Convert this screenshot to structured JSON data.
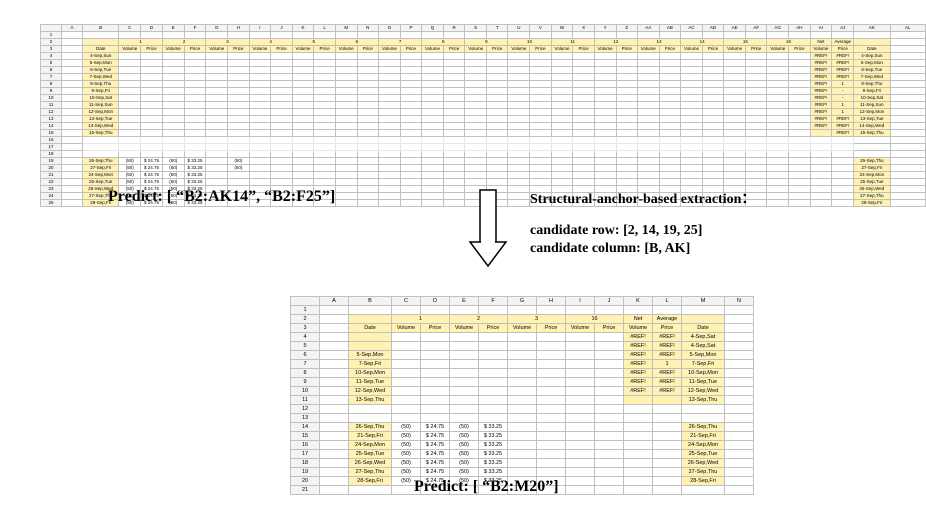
{
  "top": {
    "col_letters": [
      "A",
      "B",
      "C",
      "D",
      "E",
      "F",
      "G",
      "H",
      "I",
      "J",
      "K",
      "L",
      "M",
      "N",
      "O",
      "P",
      "Q",
      "R",
      "S",
      "T",
      "U",
      "V",
      "W",
      "X",
      "Y",
      "Z",
      "AA",
      "AB",
      "AC",
      "AD",
      "AE",
      "AF",
      "AG",
      "AH",
      "AI",
      "AJ",
      "AK",
      "AL"
    ],
    "header1_pairs": 16,
    "header2_hdr_b": "Date",
    "header2_pair": [
      "Volume",
      "Price"
    ],
    "header2_net": "Net\nVolume",
    "header2_avg": "Average\nPrice",
    "header2_date": "Date",
    "rows_block1": [
      {
        "date": "4-Sep,Sun",
        "net": "#REF!",
        "avg": "#REF!",
        "rdate": "4-Sep,Sun"
      },
      {
        "date": "5-Sep,Mon",
        "net": "#REF!",
        "avg": "#REF!",
        "rdate": "5-Sep,Mon"
      },
      {
        "date": "6-Sep,Tue",
        "net": "#REF!",
        "avg": "#REF!",
        "rdate": "6-Sep,Tue"
      },
      {
        "date": "7-Sep,Wed",
        "net": "#REF!",
        "avg": "#REF!",
        "rdate": "7-Sep,Wed"
      },
      {
        "date": "8-Sep,Thu",
        "net": "#REF!",
        "avg": "1",
        "rdate": "8-Sep,Thu"
      },
      {
        "date": "9-Sep,Fri",
        "net": "#REF!",
        "avg": "-",
        "rdate": "9-Sep,Fri"
      },
      {
        "date": "10-Sep,Sat",
        "net": "#REF!",
        "avg": "-",
        "rdate": "10-Sep,Sat"
      },
      {
        "date": "11-Sep,Sun",
        "net": "#REF!",
        "avg": "1",
        "rdate": "11-Sep,Sun"
      },
      {
        "date": "12-Sep,Mon",
        "net": "#REF!",
        "avg": "1",
        "rdate": "12-Sep,Mon"
      },
      {
        "date": "13-Sep,Tue",
        "net": "#REF!",
        "avg": "#REF!",
        "rdate": "13-Sep,Tue"
      },
      {
        "date": "14-Sep,Wed",
        "net": "#REF!",
        "avg": "#REF!",
        "rdate": "14-Sep,Wed"
      },
      {
        "date": "15-Sep,Thu",
        "net": "",
        "avg": "#REF!",
        "rdate": "15-Sep,Thu"
      }
    ],
    "rows_block2": [
      {
        "date": "26-Sep,Thu",
        "c": "(50)",
        "d": "$ 24.75",
        "e": "(50)",
        "f": "$ 33.25",
        "g": "",
        "h": "(50)",
        "rdate": "26-Sep,Thu"
      },
      {
        "date": "27-Sep,Fri",
        "c": "(50)",
        "d": "$ 24.75",
        "e": "(50)",
        "f": "$ 33.25",
        "g": "",
        "h": "(50)",
        "rdate": "27-Sep,Fri"
      },
      {
        "date": "24-Sep,Mon",
        "c": "(50)",
        "d": "$ 24.75",
        "e": "(50)",
        "f": "$ 33.25",
        "g": "",
        "h": "",
        "rdate": "24-Sep,Mon"
      },
      {
        "date": "25-Sep,Tue",
        "c": "(50)",
        "d": "$ 24.75",
        "e": "(50)",
        "f": "$ 33.25",
        "g": "",
        "h": "",
        "rdate": "25-Sep,Tue"
      },
      {
        "date": "26-Sep,Wed",
        "c": "(50)",
        "d": "$ 24.75",
        "e": "(50)",
        "f": "$ 33.25",
        "g": "",
        "h": "",
        "rdate": "26-Sep,Wed"
      },
      {
        "date": "27-Sep,Thu",
        "c": "(50)",
        "d": "$ 24.75",
        "e": "(50)",
        "f": "$ 33.25",
        "g": "",
        "h": "",
        "rdate": "27-Sep,Thu"
      },
      {
        "date": "28-Sep,Fri",
        "c": "(50)",
        "d": "$ 24.75",
        "e": "(50)",
        "f": "$ 33.25",
        "g": "",
        "h": "",
        "rdate": "28-Sep,Fri"
      }
    ]
  },
  "predict_top": "Predict: [ “B2:AK14”, “B2:F25”]",
  "structural": "Structural-anchor-based extraction：",
  "cand_row": "candidate row: [2, 14, 19, 25]",
  "cand_col": "candidate column: [B, AK]",
  "bottom": {
    "col_letters": [
      "A",
      "B",
      "C",
      "D",
      "E",
      "F",
      "G",
      "H",
      "I",
      "J",
      "K",
      "L",
      "M",
      "N"
    ],
    "header1_nums": [
      "1",
      "",
      "2",
      "",
      "3",
      "",
      "16",
      ""
    ],
    "header1_net": "Net",
    "header1_avg": "Average",
    "header2": [
      "Date",
      "Volume",
      "Price",
      "Volume",
      "Price",
      "Volume",
      "Price",
      "Volume",
      "Price",
      "Volume",
      "Price",
      "Date"
    ],
    "rows_block1": [
      {
        "date": "",
        "k": "#REF!",
        "l": "#REF!",
        "rdate": "4-Sep,Sat"
      },
      {
        "date": "",
        "k": "#REF!",
        "l": "#REF!",
        "rdate": "4-Sep,Sat"
      },
      {
        "date": "5-Sep,Mon",
        "k": "#REF!",
        "l": "#REF!",
        "rdate": "5-Sep,Mon"
      },
      {
        "date": "7-Sep,Fri",
        "k": "#REF!",
        "l": "1",
        "rdate": "7-Sep,Fri"
      },
      {
        "date": "10-Sep,Mon",
        "k": "#REF!",
        "l": "#REF!",
        "rdate": "10-Sep,Mon"
      },
      {
        "date": "11-Sep,Tue",
        "k": "#REF!",
        "l": "#REF!",
        "rdate": "11-Sep,Tue"
      },
      {
        "date": "12-Sep,Wed",
        "k": "#REF!",
        "l": "#REF!",
        "rdate": "12-Sep,Wed"
      },
      {
        "date": "13-Sep,Thu",
        "k": "",
        "l": "",
        "rdate": "13-Sep,Thu"
      }
    ],
    "rows_block2": [
      {
        "date": "26-Sep,Thu",
        "c": "(50)",
        "d": "$ 24.75",
        "e": "(50)",
        "f": "$ 33.25",
        "rdate": "26-Sep,Thu"
      },
      {
        "date": "21-Sep,Fri",
        "c": "(50)",
        "d": "$ 24.75",
        "e": "(50)",
        "f": "$ 33.25",
        "rdate": "21-Sep,Fri"
      },
      {
        "date": "24-Sep,Mon",
        "c": "(50)",
        "d": "$ 24.75",
        "e": "(50)",
        "f": "$ 33.25",
        "rdate": "24-Sep,Mon"
      },
      {
        "date": "25-Sep,Tue",
        "c": "(50)",
        "d": "$ 24.75",
        "e": "(50)",
        "f": "$ 33.25",
        "rdate": "25-Sep,Tue"
      },
      {
        "date": "26-Sep,Wed",
        "c": "(50)",
        "d": "$ 24.75",
        "e": "(50)",
        "f": "$ 33.25",
        "rdate": "26-Sep,Wed"
      },
      {
        "date": "27-Sep,Thu",
        "c": "(50)",
        "d": "$ 24.75",
        "e": "(50)",
        "f": "$ 33.25",
        "rdate": "27-Sep,Thu"
      },
      {
        "date": "28-Sep,Fri",
        "c": "(50)",
        "d": "$ 24.75",
        "e": "(50)",
        "f": "$ 33.25",
        "rdate": "28-Sep,Fri"
      }
    ]
  },
  "predict_bottom": "Predict: [ “B2:M20”]"
}
